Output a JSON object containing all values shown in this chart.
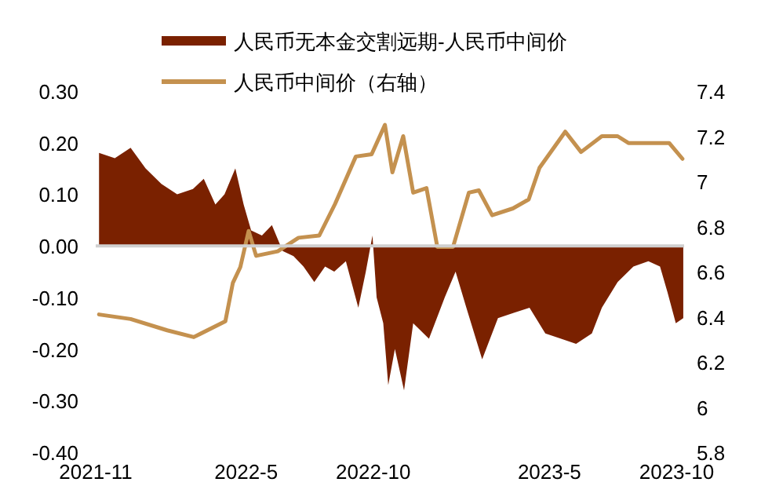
{
  "chart_data": {
    "type": "area",
    "legend": "top",
    "ref_lines": [
      {
        "axis": "y",
        "value": 0,
        "color": "#d0d0d0"
      }
    ],
    "xlim": [
      "2021-11-01",
      "2023-10-10"
    ],
    "xticks": [
      {
        "value": "2021-11-01",
        "label": "2021-11"
      },
      {
        "value": "2022-05-01",
        "label": "2022-5"
      },
      {
        "value": "2022-10-01",
        "label": "2022-10"
      },
      {
        "value": "2023-05-01",
        "label": "2023-5"
      },
      {
        "value": "2023-10-01",
        "label": "2023-10"
      }
    ],
    "ylim": [
      -0.4,
      0.3
    ],
    "yticks": [
      {
        "value": 0.3,
        "label": "0.30"
      },
      {
        "value": 0.2,
        "label": "0.20"
      },
      {
        "value": 0.1,
        "label": "0.10"
      },
      {
        "value": 0,
        "label": "0.00"
      },
      {
        "value": -0.1,
        "label": "-0.10"
      },
      {
        "value": -0.2,
        "label": "-0.20"
      },
      {
        "value": -0.3,
        "label": "-0.30"
      },
      {
        "value": -0.4,
        "label": "-0.40"
      }
    ],
    "y2lim": [
      5.8,
      7.4
    ],
    "y2ticks": [
      {
        "value": 7.4,
        "label": "7.4"
      },
      {
        "value": 7.2,
        "label": "7.2"
      },
      {
        "value": 7,
        "label": "7"
      },
      {
        "value": 6.8,
        "label": "6.8"
      },
      {
        "value": 6.6,
        "label": "6.6"
      },
      {
        "value": 6.4,
        "label": "6.4"
      },
      {
        "value": 6.2,
        "label": "6.2"
      },
      {
        "value": 6,
        "label": "6"
      },
      {
        "value": 5.8,
        "label": "5.8"
      }
    ],
    "series": [
      {
        "name": "人民币无本金交割远期-人民币中间价",
        "color": "#7a2100",
        "x": [
          "2021-11-05",
          "2021-11-24",
          "2021-12-13",
          "2021-12-31",
          "2022-01-19",
          "2022-02-07",
          "2022-02-26",
          "2022-03-11",
          "2022-03-25",
          "2022-04-05",
          "2022-04-18",
          "2022-04-28",
          "2022-05-07",
          "2022-05-20",
          "2022-06-01",
          "2022-06-14",
          "2022-06-27",
          "2022-07-09",
          "2022-07-22",
          "2022-08-04",
          "2022-08-15",
          "2022-08-29",
          "2022-09-13",
          "2022-09-22",
          "2022-09-30",
          "2022-10-05",
          "2022-10-13",
          "2022-10-19",
          "2022-10-27",
          "2022-11-07",
          "2022-11-18",
          "2022-12-07",
          "2022-12-26",
          "2023-01-08",
          "2023-01-21",
          "2023-02-09",
          "2023-02-28",
          "2023-03-19",
          "2023-04-07",
          "2023-04-26",
          "2023-05-15",
          "2023-06-02",
          "2023-06-21",
          "2023-07-03",
          "2023-07-22",
          "2023-08-10",
          "2023-08-28",
          "2023-09-11",
          "2023-09-20",
          "2023-09-30",
          "2023-10-09"
        ],
        "values": [
          0.18,
          0.17,
          0.19,
          0.15,
          0.12,
          0.1,
          0.11,
          0.13,
          0.08,
          0.1,
          0.15,
          0.08,
          0.03,
          0.02,
          0.04,
          -0.01,
          -0.02,
          -0.04,
          -0.07,
          -0.04,
          -0.05,
          -0.03,
          -0.12,
          -0.05,
          0.02,
          -0.1,
          -0.15,
          -0.27,
          -0.2,
          -0.28,
          -0.15,
          -0.18,
          -0.1,
          -0.05,
          -0.12,
          -0.22,
          -0.14,
          -0.13,
          -0.12,
          -0.17,
          -0.18,
          -0.19,
          -0.17,
          -0.12,
          -0.07,
          -0.04,
          -0.03,
          -0.04,
          -0.09,
          -0.15,
          -0.14
        ]
      },
      {
        "name": "人民币中间价（右轴）",
        "type": "line",
        "axis": "y2",
        "color": "#c4914f",
        "x": [
          "2021-11-05",
          "2021-12-13",
          "2022-01-26",
          "2022-02-27",
          "2022-04-06",
          "2022-04-15",
          "2022-04-24",
          "2022-05-04",
          "2022-05-13",
          "2022-06-08",
          "2022-07-03",
          "2022-07-28",
          "2022-08-16",
          "2022-09-10",
          "2022-09-29",
          "2022-10-15",
          "2022-10-24",
          "2022-11-06",
          "2022-11-18",
          "2022-12-04",
          "2022-12-17",
          "2023-01-05",
          "2023-01-24",
          "2023-02-05",
          "2023-02-21",
          "2023-03-18",
          "2023-04-06",
          "2023-04-19",
          "2023-05-20",
          "2023-06-08",
          "2023-07-03",
          "2023-07-22",
          "2023-08-04",
          "2023-09-22",
          "2023-10-08"
        ],
        "values": [
          6.41,
          6.39,
          6.34,
          6.31,
          6.38,
          6.55,
          6.62,
          6.78,
          6.67,
          6.69,
          6.75,
          6.76,
          6.9,
          7.11,
          7.12,
          7.25,
          7.04,
          7.2,
          6.95,
          6.97,
          6.71,
          6.71,
          6.95,
          6.96,
          6.85,
          6.88,
          6.92,
          7.06,
          7.22,
          7.13,
          7.2,
          7.2,
          7.17,
          7.17,
          7.1
        ]
      }
    ]
  }
}
